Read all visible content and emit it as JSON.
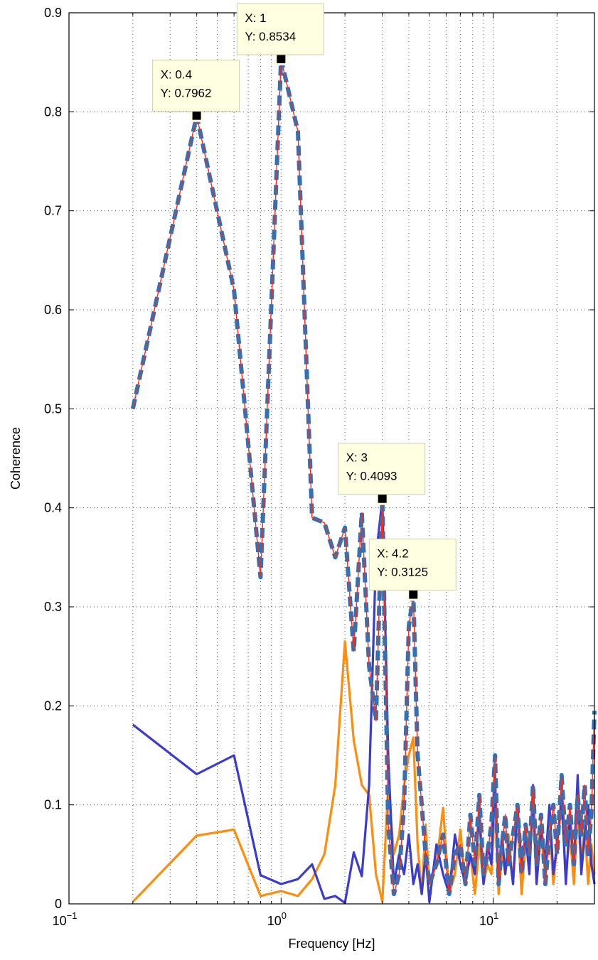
{
  "chart_data": {
    "type": "line",
    "title": "",
    "xlabel": "Frequency [Hz]",
    "ylabel": "Coherence",
    "xscale": "log",
    "xlim": [
      0.1,
      30
    ],
    "ylim": [
      0,
      0.9
    ],
    "grid": true,
    "x_ticks": [
      {
        "value": 0.1,
        "base": "10",
        "exp": "−1"
      },
      {
        "value": 1,
        "base": "10",
        "exp": "0"
      },
      {
        "value": 10,
        "base": "10",
        "exp": "1"
      }
    ],
    "y_ticks": [
      {
        "value": 0,
        "label": "0"
      },
      {
        "value": 0.1,
        "label": "0.1"
      },
      {
        "value": 0.2,
        "label": "0.2"
      },
      {
        "value": 0.3,
        "label": "0.3"
      },
      {
        "value": 0.4,
        "label": "0.4"
      },
      {
        "value": 0.5,
        "label": "0.5"
      },
      {
        "value": 0.6,
        "label": "0.6"
      },
      {
        "value": 0.7,
        "label": "0.7"
      },
      {
        "value": 0.8,
        "label": "0.8"
      },
      {
        "value": 0.9,
        "label": "0.9"
      }
    ],
    "series": [
      {
        "color": "#ff2a1a",
        "style": "thin-solid",
        "x": [
          0.2,
          0.4,
          0.6,
          0.8,
          1.0,
          1.2,
          1.4,
          1.6,
          1.8,
          2.0,
          2.2,
          2.4,
          2.6,
          2.8,
          3.0,
          3.2,
          3.4,
          3.6,
          3.8,
          4.0,
          4.2,
          4.4,
          4.6,
          4.8,
          5.0,
          5.4,
          5.8,
          6.2,
          6.6,
          7.0,
          7.4,
          7.8,
          8.2,
          8.6,
          9.0,
          9.4,
          9.8,
          10.2,
          10.6,
          11.0,
          11.4,
          11.8,
          12.4,
          13.0,
          13.6,
          14.2,
          14.8,
          15.4,
          16.0,
          16.8,
          17.6,
          18.4,
          19.2,
          20.0,
          21.0,
          22.0,
          23.0,
          24.0,
          25.0,
          26.0,
          27.0,
          28.0,
          29.0,
          30.0
        ],
        "y": [
          0.5,
          0.796,
          0.62,
          0.33,
          0.853,
          0.78,
          0.39,
          0.385,
          0.35,
          0.38,
          0.255,
          0.395,
          0.24,
          0.185,
          0.409,
          0.08,
          0.01,
          0.03,
          0.1,
          0.28,
          0.3125,
          0.15,
          0.1,
          0.05,
          0.02,
          0.04,
          0.07,
          0.01,
          0.05,
          0.06,
          0.02,
          0.09,
          0.04,
          0.11,
          0.03,
          0.05,
          0.08,
          0.15,
          0.02,
          0.06,
          0.09,
          0.04,
          0.07,
          0.1,
          0.03,
          0.08,
          0.05,
          0.12,
          0.04,
          0.09,
          0.02,
          0.07,
          0.1,
          0.05,
          0.13,
          0.06,
          0.1,
          0.04,
          0.11,
          0.07,
          0.12,
          0.05,
          0.09,
          0.195
        ]
      },
      {
        "color": "#1f77c4",
        "style": "thick-dashed",
        "x": [
          0.2,
          0.4,
          0.6,
          0.8,
          1.0,
          1.2,
          1.4,
          1.6,
          1.8,
          2.0,
          2.2,
          2.4,
          2.6,
          2.8,
          3.0,
          3.2,
          3.4,
          3.6,
          3.8,
          4.0,
          4.2,
          4.4,
          4.6,
          4.8,
          5.0,
          5.4,
          5.8,
          6.2,
          6.6,
          7.0,
          7.4,
          7.8,
          8.2,
          8.6,
          9.0,
          9.4,
          9.8,
          10.2,
          10.6,
          11.0,
          11.4,
          11.8,
          12.4,
          13.0,
          13.6,
          14.2,
          14.8,
          15.4,
          16.0,
          16.8,
          17.6,
          18.4,
          19.2,
          20.0,
          21.0,
          22.0,
          23.0,
          24.0,
          25.0,
          26.0,
          27.0,
          28.0,
          29.0,
          30.0
        ],
        "y": [
          0.5,
          0.796,
          0.62,
          0.33,
          0.853,
          0.78,
          0.39,
          0.385,
          0.35,
          0.38,
          0.255,
          0.395,
          0.24,
          0.185,
          0.409,
          0.08,
          0.01,
          0.03,
          0.1,
          0.28,
          0.3125,
          0.15,
          0.1,
          0.05,
          0.02,
          0.04,
          0.07,
          0.01,
          0.05,
          0.06,
          0.02,
          0.09,
          0.04,
          0.11,
          0.03,
          0.05,
          0.08,
          0.15,
          0.02,
          0.06,
          0.09,
          0.04,
          0.07,
          0.1,
          0.03,
          0.08,
          0.05,
          0.12,
          0.04,
          0.09,
          0.02,
          0.07,
          0.1,
          0.05,
          0.13,
          0.06,
          0.1,
          0.04,
          0.11,
          0.07,
          0.12,
          0.05,
          0.09,
          0.195
        ]
      },
      {
        "color": "#ff8c0a",
        "style": "solid",
        "x": [
          0.2,
          0.4,
          0.6,
          0.8,
          1.0,
          1.2,
          1.4,
          1.6,
          1.8,
          2.0,
          2.2,
          2.4,
          2.6,
          2.8,
          3.0,
          3.2,
          3.4,
          3.6,
          3.8,
          4.0,
          4.2,
          4.4,
          4.6,
          4.8,
          5.0,
          5.4,
          5.8,
          6.2,
          6.6,
          7.0,
          7.4,
          7.8,
          8.2,
          8.6,
          9.0,
          9.4,
          9.8,
          10.2,
          10.6,
          11.0,
          11.4,
          11.8,
          12.4,
          13.0,
          13.6,
          14.2,
          14.8,
          15.4,
          16.0,
          16.8,
          17.6,
          18.4,
          19.2,
          20.0,
          21.0,
          22.0,
          23.0,
          24.0,
          25.0,
          26.0,
          27.0,
          28.0,
          29.0,
          30.0
        ],
        "y": [
          0.002,
          0.069,
          0.075,
          0.008,
          0.013,
          0.008,
          0.025,
          0.05,
          0.12,
          0.265,
          0.165,
          0.12,
          0.11,
          0.03,
          0.002,
          0.12,
          0.05,
          0.07,
          0.12,
          0.15,
          0.168,
          0.06,
          0.01,
          0.08,
          0.02,
          0.04,
          0.097,
          0.01,
          0.03,
          0.075,
          0.02,
          0.05,
          0.01,
          0.06,
          0.02,
          0.04,
          0.03,
          0.1,
          0.01,
          0.05,
          0.03,
          0.07,
          0.02,
          0.09,
          0.01,
          0.06,
          0.04,
          0.1,
          0.02,
          0.07,
          0.03,
          0.08,
          0.02,
          0.06,
          0.1,
          0.03,
          0.07,
          0.02,
          0.09,
          0.04,
          0.08,
          0.02,
          0.06,
          0.03
        ]
      },
      {
        "color": "#3a3ccf",
        "style": "solid",
        "x": [
          0.2,
          0.4,
          0.6,
          0.8,
          1.0,
          1.2,
          1.4,
          1.6,
          1.8,
          2.0,
          2.2,
          2.4,
          2.6,
          2.8,
          3.0,
          3.2,
          3.4,
          3.6,
          3.8,
          4.0,
          4.2,
          4.4,
          4.6,
          4.8,
          5.0,
          5.4,
          5.8,
          6.2,
          6.6,
          7.0,
          7.4,
          7.8,
          8.2,
          8.6,
          9.0,
          9.4,
          9.8,
          10.2,
          10.6,
          11.0,
          11.4,
          11.8,
          12.4,
          13.0,
          13.6,
          14.2,
          14.8,
          15.4,
          16.0,
          16.8,
          17.6,
          18.4,
          19.2,
          20.0,
          21.0,
          22.0,
          23.0,
          24.0,
          25.0,
          26.0,
          27.0,
          28.0,
          29.0,
          30.0
        ],
        "y": [
          0.181,
          0.131,
          0.15,
          0.029,
          0.02,
          0.025,
          0.04,
          0.005,
          0.008,
          0.001,
          0.052,
          0.028,
          0.12,
          0.35,
          0.409,
          0.15,
          0.02,
          0.05,
          0.03,
          0.07,
          0.02,
          0.04,
          0.01,
          0.05,
          0.002,
          0.06,
          0.03,
          0.01,
          0.07,
          0.04,
          0.02,
          0.05,
          0.03,
          0.09,
          0.02,
          0.06,
          0.04,
          0.13,
          0.02,
          0.07,
          0.03,
          0.06,
          0.02,
          0.1,
          0.04,
          0.07,
          0.03,
          0.12,
          0.02,
          0.08,
          0.04,
          0.1,
          0.03,
          0.06,
          0.11,
          0.02,
          0.09,
          0.04,
          0.13,
          0.03,
          0.07,
          0.1,
          0.04,
          0.02
        ]
      }
    ],
    "datatips": [
      {
        "x": 0.4,
        "y": 0.7962,
        "line1": "X: 0.4",
        "line2": "Y: 0.7962"
      },
      {
        "x": 1,
        "y": 0.8534,
        "line1": "X: 1",
        "line2": "Y: 0.8534"
      },
      {
        "x": 3,
        "y": 0.4093,
        "line1": "X: 3",
        "line2": "Y: 0.4093"
      },
      {
        "x": 4.2,
        "y": 0.3125,
        "line1": "X: 4.2",
        "line2": "Y: 0.3125"
      }
    ]
  }
}
